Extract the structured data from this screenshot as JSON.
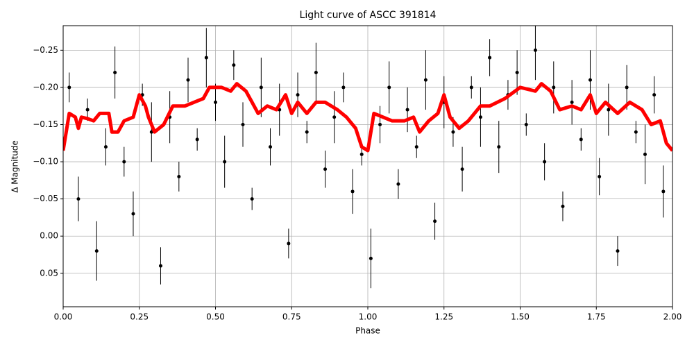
{
  "chart_data": {
    "type": "scatter",
    "title": "Light curve of ASCC 391814",
    "x_label": "Phase",
    "y_label": "Δ Magnitude",
    "xlim": [
      0,
      2
    ],
    "ylim": [
      0.095,
      -0.283
    ],
    "grid": true,
    "xticks": [
      {
        "value": 0,
        "label": "0.00"
      },
      0.25,
      {
        "value": 0.5,
        "label": "0.50"
      },
      0.75,
      {
        "value": 1,
        "label": "1.00"
      },
      1.25,
      {
        "value": 1.5,
        "label": "1.50"
      },
      1.75,
      {
        "value": 2,
        "label": "2.00"
      }
    ],
    "yticks": [
      {
        "value": -0.25,
        "label": "−0.25"
      },
      {
        "value": -0.2,
        "label": "−0.20"
      },
      {
        "value": -0.15,
        "label": "−0.15"
      },
      {
        "value": -0.1,
        "label": "−0.10"
      },
      {
        "value": -0.05,
        "label": "−0.05"
      },
      {
        "value": 0,
        "label": "0.00"
      },
      0.05
    ],
    "series": [
      {
        "type": "errorbar",
        "color": "#000000",
        "x": [
          0.02,
          0.05,
          0.08,
          0.11,
          0.14,
          0.17,
          0.2,
          0.23,
          0.26,
          0.29,
          0.32,
          0.35,
          0.38,
          0.41,
          0.44,
          0.47,
          0.5,
          0.53,
          0.56,
          0.59,
          0.62,
          0.65,
          0.68,
          0.71,
          0.74,
          0.77,
          0.8,
          0.83,
          0.86,
          0.89,
          0.92,
          0.95,
          0.98,
          1.01,
          1.04,
          1.07,
          1.1,
          1.13,
          1.16,
          1.19,
          1.22,
          1.25,
          1.28,
          1.31,
          1.34,
          1.37,
          1.4,
          1.43,
          1.46,
          1.49,
          1.52,
          1.55,
          1.58,
          1.61,
          1.64,
          1.67,
          1.7,
          1.73,
          1.76,
          1.79,
          1.82,
          1.85,
          1.88,
          1.91,
          1.94,
          1.97
        ],
        "values": [
          -0.2,
          -0.05,
          -0.17,
          0.02,
          -0.12,
          -0.22,
          -0.1,
          -0.03,
          -0.19,
          -0.14,
          0.04,
          -0.16,
          -0.08,
          -0.21,
          -0.13,
          -0.24,
          -0.18,
          -0.1,
          -0.23,
          -0.15,
          -0.05,
          -0.2,
          -0.12,
          -0.17,
          0.01,
          -0.19,
          -0.14,
          -0.22,
          -0.09,
          -0.16,
          -0.2,
          -0.06,
          -0.11,
          0.03,
          -0.15,
          -0.2,
          -0.07,
          -0.17,
          -0.12,
          -0.21,
          -0.02,
          -0.18,
          -0.14,
          -0.09,
          -0.2,
          -0.16,
          -0.24,
          -0.12,
          -0.19,
          -0.22,
          -0.15,
          -0.25,
          -0.1,
          -0.2,
          -0.04,
          -0.18,
          -0.13,
          -0.21,
          -0.08,
          -0.17,
          0.02,
          -0.2,
          -0.14,
          -0.11,
          -0.19,
          -0.06
        ],
        "errors": [
          0.02,
          0.03,
          0.015,
          0.04,
          0.025,
          0.035,
          0.02,
          0.03,
          0.015,
          0.04,
          0.025,
          0.035,
          0.02,
          0.03,
          0.015,
          0.04,
          0.025,
          0.035,
          0.02,
          0.03,
          0.015,
          0.04,
          0.025,
          0.035,
          0.02,
          0.03,
          0.015,
          0.04,
          0.025,
          0.035,
          0.02,
          0.03,
          0.015,
          0.04,
          0.025,
          0.035,
          0.02,
          0.03,
          0.015,
          0.04,
          0.025,
          0.035,
          0.02,
          0.03,
          0.015,
          0.04,
          0.025,
          0.035,
          0.02,
          0.03,
          0.015,
          0.04,
          0.025,
          0.035,
          0.02,
          0.03,
          0.015,
          0.04,
          0.025,
          0.035,
          0.02,
          0.03,
          0.015,
          0.04,
          0.025,
          0.035
        ]
      },
      {
        "type": "line",
        "color": "#ff0000",
        "x": [
          0,
          0.01,
          0.02,
          0.04,
          0.05,
          0.06,
          0.08,
          0.1,
          0.12,
          0.15,
          0.16,
          0.18,
          0.2,
          0.23,
          0.25,
          0.27,
          0.28,
          0.3,
          0.33,
          0.36,
          0.4,
          0.43,
          0.46,
          0.48,
          0.5,
          0.52,
          0.55,
          0.57,
          0.6,
          0.62,
          0.64,
          0.67,
          0.7,
          0.73,
          0.75,
          0.77,
          0.8,
          0.83,
          0.86,
          0.9,
          0.93,
          0.96,
          0.98,
          1,
          1.02,
          1.05,
          1.08,
          1.12,
          1.15,
          1.17,
          1.2,
          1.23,
          1.25,
          1.27,
          1.3,
          1.33,
          1.37,
          1.4,
          1.45,
          1.5,
          1.55,
          1.57,
          1.6,
          1.63,
          1.67,
          1.7,
          1.73,
          1.75,
          1.78,
          1.82,
          1.86,
          1.9,
          1.93,
          1.96,
          1.98,
          2
        ],
        "values": [
          -0.115,
          -0.14,
          -0.165,
          -0.16,
          -0.145,
          -0.16,
          -0.158,
          -0.155,
          -0.165,
          -0.165,
          -0.14,
          -0.14,
          -0.155,
          -0.16,
          -0.19,
          -0.175,
          -0.16,
          -0.14,
          -0.15,
          -0.175,
          -0.175,
          -0.18,
          -0.185,
          -0.2,
          -0.2,
          -0.2,
          -0.195,
          -0.205,
          -0.195,
          -0.18,
          -0.165,
          -0.175,
          -0.17,
          -0.19,
          -0.165,
          -0.18,
          -0.165,
          -0.18,
          -0.18,
          -0.17,
          -0.16,
          -0.145,
          -0.12,
          -0.115,
          -0.165,
          -0.16,
          -0.155,
          -0.155,
          -0.16,
          -0.14,
          -0.155,
          -0.165,
          -0.19,
          -0.16,
          -0.145,
          -0.155,
          -0.175,
          -0.175,
          -0.185,
          -0.2,
          -0.195,
          -0.205,
          -0.195,
          -0.17,
          -0.175,
          -0.17,
          -0.19,
          -0.165,
          -0.18,
          -0.165,
          -0.18,
          -0.17,
          -0.15,
          -0.155,
          -0.125,
          -0.115
        ]
      }
    ]
  }
}
